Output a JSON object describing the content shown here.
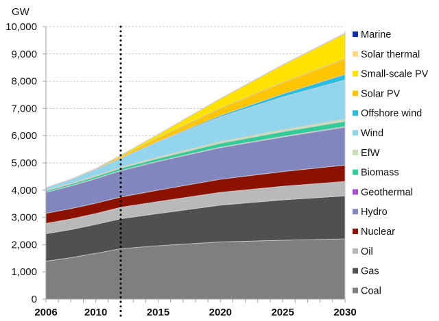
{
  "chart_data": {
    "type": "area",
    "stacked": true,
    "title": "",
    "ylabel": "GW",
    "xlabel": "",
    "ylim": [
      0,
      10000
    ],
    "xlim": [
      2006,
      2030
    ],
    "yticks": [
      0,
      1000,
      2000,
      3000,
      4000,
      5000,
      6000,
      7000,
      8000,
      9000,
      10000
    ],
    "ytick_labels": [
      "0",
      "1,000",
      "2,000",
      "3,000",
      "4,000",
      "5,000",
      "6,000",
      "7,000",
      "8,000",
      "9,000",
      "10,000"
    ],
    "xticks": [
      2006,
      2010,
      2015,
      2020,
      2025,
      2030
    ],
    "xtick_labels": [
      "2006",
      "2010",
      "2015",
      "2020",
      "2025",
      "2030"
    ],
    "grid": "horizontal dashed",
    "legend_position": "right",
    "annotations": [
      {
        "type": "vertical-dotted-line",
        "x": 2012
      }
    ],
    "x": [
      2006,
      2008,
      2010,
      2012,
      2015,
      2020,
      2025,
      2030
    ],
    "series": [
      {
        "name": "Coal",
        "color": "#7f7f7f",
        "values": [
          1390,
          1520,
          1680,
          1850,
          1960,
          2100,
          2160,
          2210
        ]
      },
      {
        "name": "Gas",
        "color": "#505050",
        "values": [
          1010,
          1030,
          1060,
          1100,
          1180,
          1350,
          1480,
          1580
        ]
      },
      {
        "name": "Oil",
        "color": "#b9b9b9",
        "values": [
          380,
          390,
          400,
          420,
          440,
          470,
          500,
          530
        ]
      },
      {
        "name": "Nuclear",
        "color": "#8b1100",
        "values": [
          370,
          380,
          380,
          380,
          420,
          480,
          540,
          600
        ]
      },
      {
        "name": "Hydro",
        "color": "#8286bf",
        "values": [
          770,
          830,
          900,
          960,
          1050,
          1160,
          1270,
          1390
        ]
      },
      {
        "name": "Geothermal",
        "color": "#a64fd1",
        "values": [
          10,
          10,
          11,
          12,
          14,
          18,
          22,
          26
        ]
      },
      {
        "name": "Biomass",
        "color": "#33cc99",
        "values": [
          50,
          60,
          70,
          80,
          100,
          140,
          170,
          190
        ]
      },
      {
        "name": "EfW",
        "color": "#c8dfb4",
        "values": [
          30,
          35,
          40,
          45,
          55,
          70,
          80,
          90
        ]
      },
      {
        "name": "Wind",
        "color": "#94d5ee",
        "values": [
          75,
          130,
          210,
          320,
          560,
          900,
          1200,
          1430
        ]
      },
      {
        "name": "Offshore wind",
        "color": "#29bde0",
        "values": [
          1,
          2,
          3,
          6,
          15,
          50,
          110,
          200
        ]
      },
      {
        "name": "Solar PV",
        "color": "#ffc600",
        "values": [
          5,
          10,
          25,
          60,
          130,
          270,
          420,
          580
        ]
      },
      {
        "name": "Small-scale PV",
        "color": "#ffe200",
        "values": [
          2,
          5,
          15,
          45,
          120,
          350,
          640,
          920
        ]
      },
      {
        "name": "Solar thermal",
        "color": "#ffd985",
        "values": [
          0,
          0,
          1,
          2,
          4,
          8,
          12,
          16
        ]
      },
      {
        "name": "Marine",
        "color": "#0d2faa",
        "values": [
          0,
          0,
          0,
          0,
          1,
          2,
          4,
          6
        ]
      }
    ],
    "legend_order": [
      "Marine",
      "Solar thermal",
      "Small-scale PV",
      "Solar PV",
      "Offshore wind",
      "Wind",
      "EfW",
      "Biomass",
      "Geothermal",
      "Hydro",
      "Nuclear",
      "Oil",
      "Gas",
      "Coal"
    ]
  }
}
